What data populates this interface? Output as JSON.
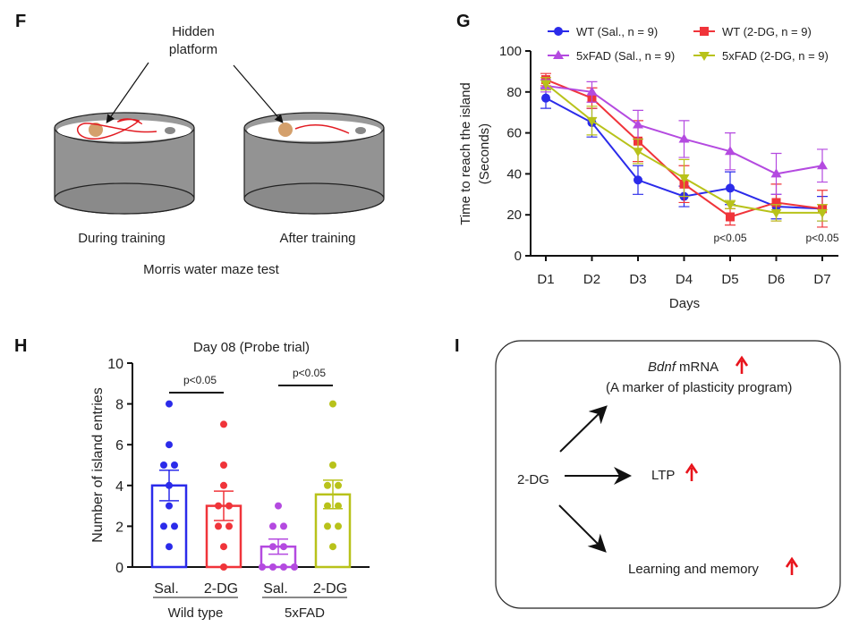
{
  "panels": {
    "F": {
      "label": "F",
      "hidden_platform_line1": "Hidden",
      "hidden_platform_line2": "platform",
      "during": "During training",
      "after": "After training",
      "caption": "Morris water maze test"
    },
    "G": {
      "label": "G"
    },
    "H": {
      "label": "H"
    },
    "I": {
      "label": "I",
      "source": "2-DG",
      "bdnf_italic": "Bdnf",
      "bdnf_rest": " mRNA",
      "bdnf_sub": "(A marker of plasticity program)",
      "ltp": "LTP",
      "learning": "Learning and memory",
      "up_arrow_color": "#e8141c"
    }
  },
  "chart_data": [
    {
      "type": "line",
      "panel": "G",
      "xlabel": "Days",
      "ylabel_line1": "Time to reach the island",
      "ylabel_line2": "(Seconds)",
      "categories": [
        "D1",
        "D2",
        "D3",
        "D4",
        "D5",
        "D6",
        "D7"
      ],
      "ylim": [
        0,
        100
      ],
      "yticks": [
        0,
        20,
        40,
        60,
        80,
        100
      ],
      "legend_placement": "top",
      "annotations": [
        {
          "day": "D5",
          "text": "p<0.05"
        },
        {
          "day": "D7",
          "text": "p<0.05"
        }
      ],
      "series": [
        {
          "name": "WT (Sal., n = 9)",
          "color": "#2b2bea",
          "marker": "circle",
          "values": [
            77,
            65,
            37,
            29,
            33,
            24,
            23
          ],
          "sem": [
            5,
            7,
            7,
            5,
            8,
            6,
            6
          ]
        },
        {
          "name": "WT (2-DG, n = 9)",
          "color": "#f0343a",
          "marker": "square",
          "values": [
            86,
            77,
            56,
            35,
            19,
            26,
            23
          ],
          "sem": [
            3,
            5,
            10,
            9,
            4,
            9,
            9
          ]
        },
        {
          "name": "5xFAD (Sal., n = 9)",
          "color": "#b44ae0",
          "marker": "triangle-up",
          "values": [
            83,
            80,
            64,
            57,
            51,
            40,
            44
          ],
          "sem": [
            3,
            5,
            7,
            9,
            9,
            10,
            8
          ]
        },
        {
          "name": "5xFAD (2-DG, n = 9)",
          "color": "#b8c21a",
          "marker": "triangle-down",
          "values": [
            84,
            66,
            51,
            38,
            25,
            21,
            21
          ],
          "sem": [
            3,
            7,
            6,
            9,
            2,
            4,
            4
          ]
        }
      ]
    },
    {
      "type": "bar",
      "panel": "H",
      "title": "Day 08 (Probe trial)",
      "ylabel": "Number of island entries",
      "ylim": [
        0,
        10
      ],
      "yticks": [
        0,
        2,
        4,
        6,
        8,
        10
      ],
      "categories": [
        "Sal.",
        "2-DG",
        "Sal.",
        "2-DG"
      ],
      "groups": [
        {
          "label": "Wild type",
          "members": [
            0,
            1
          ]
        },
        {
          "label": "5xFAD",
          "members": [
            2,
            3
          ]
        }
      ],
      "colors": [
        "#2b2bea",
        "#f0343a",
        "#b44ae0",
        "#b8c21a"
      ],
      "values": [
        4.0,
        3.0,
        1.0,
        3.56
      ],
      "sem": [
        0.75,
        0.72,
        0.37,
        0.7
      ],
      "points": [
        [
          8,
          6,
          5,
          5,
          4,
          3,
          2,
          2,
          1
        ],
        [
          7,
          5,
          4,
          3,
          3,
          2,
          2,
          1,
          0
        ],
        [
          3,
          2,
          2,
          1,
          1,
          0,
          0,
          0,
          0
        ],
        [
          8,
          5,
          4,
          4,
          3,
          3,
          2,
          2,
          1
        ]
      ],
      "significance": [
        {
          "between": [
            0,
            1
          ],
          "text": "p<0.05"
        },
        {
          "between": [
            2,
            3
          ],
          "text": "p<0.05"
        }
      ]
    }
  ]
}
